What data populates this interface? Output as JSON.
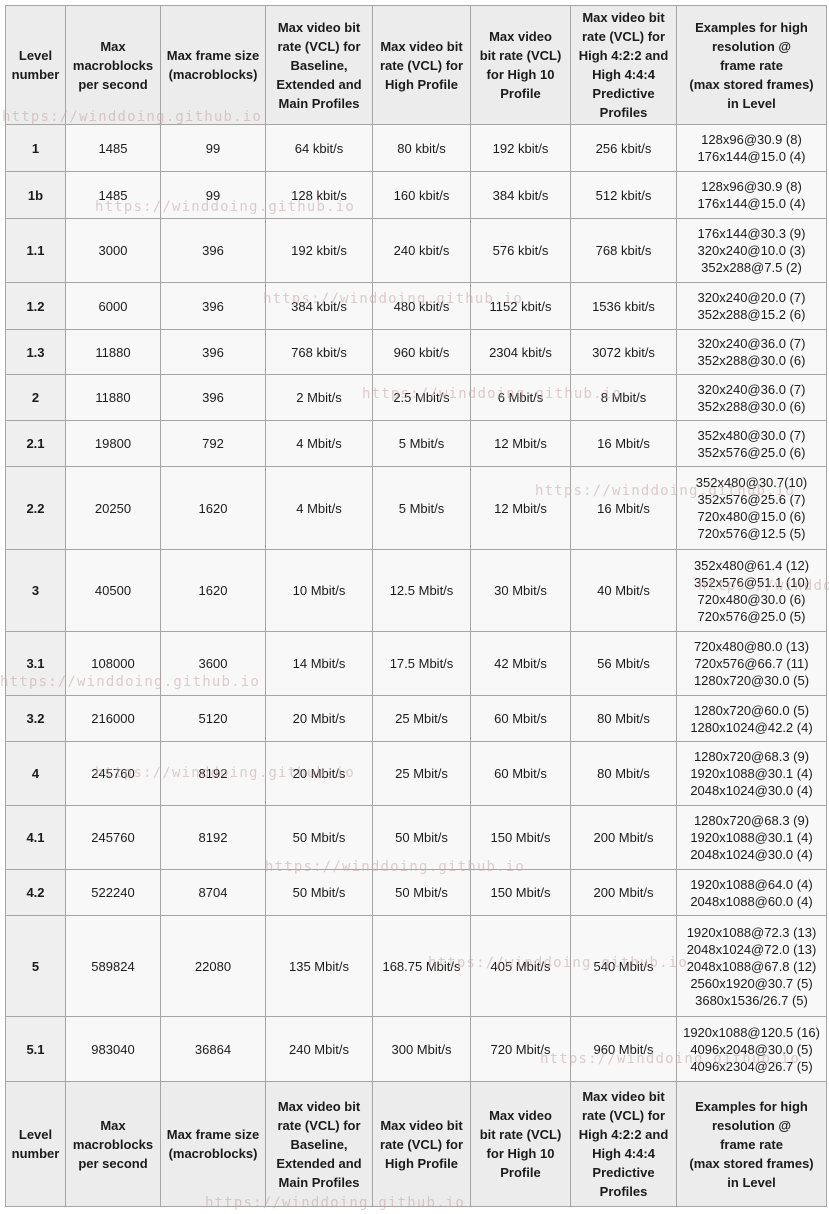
{
  "table": {
    "headers": [
      [
        "Level",
        "number"
      ],
      [
        "Max",
        "macroblocks",
        "per second"
      ],
      [
        "Max frame size",
        "(macroblocks)"
      ],
      [
        "Max video bit",
        "rate (VCL) for",
        "Baseline,",
        "Extended and",
        "Main Profiles"
      ],
      [
        "Max video bit",
        "rate (VCL) for",
        "High Profile"
      ],
      [
        "Max video",
        "bit rate (VCL)",
        "for High 10",
        "Profile"
      ],
      [
        "Max video bit",
        "rate (VCL) for",
        "High 4:2:2 and",
        "High 4:4:4",
        "Predictive",
        "Profiles"
      ],
      [
        "Examples for high",
        "resolution @",
        "frame rate",
        "(max stored frames)",
        "in Level"
      ]
    ],
    "rows": [
      {
        "level": "1",
        "max_macroblocks_per_second": "1485",
        "max_frame_size": "99",
        "vcl_baseline_extended_main": "64 kbit/s",
        "vcl_high": "80 kbit/s",
        "vcl_high10": "192 kbit/s",
        "vcl_high422_444": "256 kbit/s",
        "examples": [
          "128x96@30.9 (8)",
          "176x144@15.0 (4)"
        ]
      },
      {
        "level": "1b",
        "max_macroblocks_per_second": "1485",
        "max_frame_size": "99",
        "vcl_baseline_extended_main": "128 kbit/s",
        "vcl_high": "160 kbit/s",
        "vcl_high10": "384 kbit/s",
        "vcl_high422_444": "512 kbit/s",
        "examples": [
          "128x96@30.9 (8)",
          "176x144@15.0 (4)"
        ]
      },
      {
        "level": "1.1",
        "max_macroblocks_per_second": "3000",
        "max_frame_size": "396",
        "vcl_baseline_extended_main": "192 kbit/s",
        "vcl_high": "240 kbit/s",
        "vcl_high10": "576 kbit/s",
        "vcl_high422_444": "768 kbit/s",
        "examples": [
          "176x144@30.3 (9)",
          "320x240@10.0 (3)",
          "352x288@7.5 (2)"
        ]
      },
      {
        "level": "1.2",
        "max_macroblocks_per_second": "6000",
        "max_frame_size": "396",
        "vcl_baseline_extended_main": "384 kbit/s",
        "vcl_high": "480 kbit/s",
        "vcl_high10": "1152 kbit/s",
        "vcl_high422_444": "1536 kbit/s",
        "examples": [
          "320x240@20.0 (7)",
          "352x288@15.2 (6)"
        ]
      },
      {
        "level": "1.3",
        "max_macroblocks_per_second": "11880",
        "max_frame_size": "396",
        "vcl_baseline_extended_main": "768 kbit/s",
        "vcl_high": "960 kbit/s",
        "vcl_high10": "2304 kbit/s",
        "vcl_high422_444": "3072 kbit/s",
        "examples": [
          "320x240@36.0 (7)",
          "352x288@30.0 (6)"
        ]
      },
      {
        "level": "2",
        "max_macroblocks_per_second": "11880",
        "max_frame_size": "396",
        "vcl_baseline_extended_main": "2 Mbit/s",
        "vcl_high": "2.5 Mbit/s",
        "vcl_high10": "6 Mbit/s",
        "vcl_high422_444": "8 Mbit/s",
        "examples": [
          "320x240@36.0 (7)",
          "352x288@30.0 (6)"
        ]
      },
      {
        "level": "2.1",
        "max_macroblocks_per_second": "19800",
        "max_frame_size": "792",
        "vcl_baseline_extended_main": "4 Mbit/s",
        "vcl_high": "5 Mbit/s",
        "vcl_high10": "12 Mbit/s",
        "vcl_high422_444": "16 Mbit/s",
        "examples": [
          "352x480@30.0 (7)",
          "352x576@25.0 (6)"
        ]
      },
      {
        "level": "2.2",
        "max_macroblocks_per_second": "20250",
        "max_frame_size": "1620",
        "vcl_baseline_extended_main": "4 Mbit/s",
        "vcl_high": "5 Mbit/s",
        "vcl_high10": "12 Mbit/s",
        "vcl_high422_444": "16 Mbit/s",
        "examples": [
          "352x480@30.7(10)",
          "352x576@25.6 (7)",
          "720x480@15.0 (6)",
          "720x576@12.5 (5)"
        ]
      },
      {
        "level": "3",
        "max_macroblocks_per_second": "40500",
        "max_frame_size": "1620",
        "vcl_baseline_extended_main": "10 Mbit/s",
        "vcl_high": "12.5 Mbit/s",
        "vcl_high10": "30 Mbit/s",
        "vcl_high422_444": "40 Mbit/s",
        "examples": [
          "352x480@61.4 (12)",
          "352x576@51.1 (10)",
          "720x480@30.0 (6)",
          "720x576@25.0 (5)"
        ]
      },
      {
        "level": "3.1",
        "max_macroblocks_per_second": "108000",
        "max_frame_size": "3600",
        "vcl_baseline_extended_main": "14 Mbit/s",
        "vcl_high": "17.5 Mbit/s",
        "vcl_high10": "42 Mbit/s",
        "vcl_high422_444": "56 Mbit/s",
        "examples": [
          "720x480@80.0 (13)",
          "720x576@66.7 (11)",
          "1280x720@30.0 (5)"
        ]
      },
      {
        "level": "3.2",
        "max_macroblocks_per_second": "216000",
        "max_frame_size": "5120",
        "vcl_baseline_extended_main": "20 Mbit/s",
        "vcl_high": "25 Mbit/s",
        "vcl_high10": "60 Mbit/s",
        "vcl_high422_444": "80 Mbit/s",
        "examples": [
          "1280x720@60.0 (5)",
          "1280x1024@42.2 (4)"
        ]
      },
      {
        "level": "4",
        "max_macroblocks_per_second": "245760",
        "max_frame_size": "8192",
        "vcl_baseline_extended_main": "20 Mbit/s",
        "vcl_high": "25 Mbit/s",
        "vcl_high10": "60 Mbit/s",
        "vcl_high422_444": "80 Mbit/s",
        "examples": [
          "1280x720@68.3 (9)",
          "1920x1088@30.1 (4)",
          "2048x1024@30.0 (4)"
        ]
      },
      {
        "level": "4.1",
        "max_macroblocks_per_second": "245760",
        "max_frame_size": "8192",
        "vcl_baseline_extended_main": "50 Mbit/s",
        "vcl_high": "50 Mbit/s",
        "vcl_high10": "150 Mbit/s",
        "vcl_high422_444": "200 Mbit/s",
        "examples": [
          "1280x720@68.3 (9)",
          "1920x1088@30.1 (4)",
          "2048x1024@30.0 (4)"
        ]
      },
      {
        "level": "4.2",
        "max_macroblocks_per_second": "522240",
        "max_frame_size": "8704",
        "vcl_baseline_extended_main": "50 Mbit/s",
        "vcl_high": "50 Mbit/s",
        "vcl_high10": "150 Mbit/s",
        "vcl_high422_444": "200 Mbit/s",
        "examples": [
          "1920x1088@64.0 (4)",
          "2048x1088@60.0 (4)"
        ]
      },
      {
        "level": "5",
        "max_macroblocks_per_second": "589824",
        "max_frame_size": "22080",
        "vcl_baseline_extended_main": "135 Mbit/s",
        "vcl_high": "168.75 Mbit/s",
        "vcl_high10": "405 Mbit/s",
        "vcl_high422_444": "540 Mbit/s",
        "examples": [
          "1920x1088@72.3 (13)",
          "2048x1024@72.0 (13)",
          "2048x1088@67.8 (12)",
          "2560x1920@30.7 (5)",
          "3680x1536/26.7 (5)"
        ]
      },
      {
        "level": "5.1",
        "max_macroblocks_per_second": "983040",
        "max_frame_size": "36864",
        "vcl_baseline_extended_main": "240 Mbit/s",
        "vcl_high": "300 Mbit/s",
        "vcl_high10": "720 Mbit/s",
        "vcl_high422_444": "960 Mbit/s",
        "examples": [
          "1920x1088@120.5 (16)",
          "4096x2048@30.0 (5)",
          "4096x2304@26.7 (5)"
        ]
      }
    ]
  },
  "watermark": {
    "text": "https://winddoing.github.io"
  },
  "colors": {
    "header_bg": "#ececec",
    "level_col_bg": "#efefef",
    "cell_bg": "#f8f8f8",
    "border": "#a5a5a5",
    "text": "#1b1b1b",
    "watermark": "#c3a5a5"
  }
}
